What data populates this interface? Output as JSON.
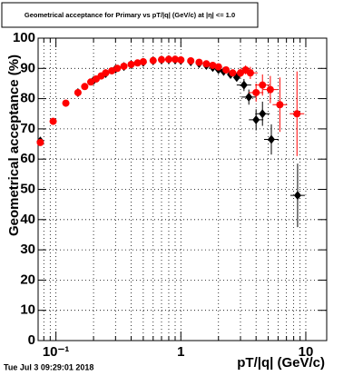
{
  "chart_data": {
    "type": "scatter",
    "title": "Geometrical acceptance for Primary vs pT/|q| (GeV/c) at |η| <= 1.0",
    "x_label": "pT/|q| (GeV/c)",
    "y_label": "Geometrical acceptance (%)",
    "timestamp": "Tue Jul  3 09:29:01 2018",
    "log_x": true,
    "grid": true,
    "xlim": [
      0.072,
      14.7
    ],
    "ylim": [
      0,
      100
    ],
    "xticks": [
      {
        "value": 0.1,
        "label": "10⁻¹"
      },
      1,
      10
    ],
    "xminorticks": [
      0.08,
      0.09,
      0.2,
      0.3,
      0.4,
      0.5,
      0.6,
      0.7,
      0.8,
      0.9,
      2,
      3,
      4,
      5,
      6,
      7,
      8,
      9
    ],
    "yticks": [
      0,
      10,
      20,
      30,
      40,
      50,
      60,
      70,
      80,
      90,
      100
    ],
    "series": [
      {
        "color": "#000000",
        "marker": "diamond",
        "x": [
          0.075,
          0.15,
          0.2,
          0.25,
          0.3,
          0.35,
          0.4,
          0.5,
          0.6,
          0.7,
          0.8,
          0.9,
          1.0,
          1.2,
          1.4,
          1.6,
          1.8,
          2.0,
          2.2,
          2.5,
          2.8,
          3.2,
          3.5,
          4.0,
          4.5,
          5.3,
          8.6
        ],
        "values": [
          66,
          82,
          86,
          88.3,
          89.8,
          90.6,
          91.2,
          92,
          92.5,
          92.8,
          92.9,
          92.8,
          92.6,
          92.2,
          91.6,
          91,
          90.3,
          89.6,
          89,
          88,
          87,
          84.5,
          80.5,
          73,
          75,
          66.5,
          48
        ],
        "yerr": [
          null,
          null,
          null,
          null,
          null,
          null,
          null,
          null,
          null,
          null,
          null,
          null,
          null,
          null,
          null,
          null,
          null,
          null,
          null,
          null,
          null,
          2,
          2.5,
          3.5,
          4,
          5,
          10.5
        ]
      },
      {
        "color": "#ff0000",
        "marker": "circle",
        "x": [
          0.075,
          0.095,
          0.12,
          0.15,
          0.17,
          0.19,
          0.21,
          0.23,
          0.25,
          0.28,
          0.31,
          0.35,
          0.4,
          0.45,
          0.5,
          0.6,
          0.7,
          0.8,
          0.9,
          1.0,
          1.2,
          1.4,
          1.6,
          1.8,
          2.0,
          2.3,
          2.6,
          3.0,
          3.3,
          3.6,
          4.0,
          4.5,
          5.2,
          6.2,
          8.5
        ],
        "values": [
          65.5,
          72.5,
          78.5,
          82,
          84,
          85.5,
          86.5,
          87.5,
          88.5,
          89.2,
          90,
          90.7,
          91.3,
          91.8,
          92.2,
          92.6,
          92.9,
          93,
          93,
          92.8,
          92.5,
          92,
          91.5,
          91,
          90.5,
          89.5,
          88.5,
          88.5,
          89.5,
          88.5,
          82,
          84.5,
          83,
          78,
          75
        ],
        "yerr": [
          null,
          null,
          null,
          null,
          null,
          null,
          null,
          null,
          null,
          null,
          null,
          null,
          null,
          null,
          null,
          null,
          null,
          null,
          null,
          null,
          null,
          null,
          null,
          null,
          null,
          null,
          null,
          1.5,
          1.5,
          2,
          3,
          3.5,
          4.5,
          9,
          14
        ]
      }
    ]
  }
}
